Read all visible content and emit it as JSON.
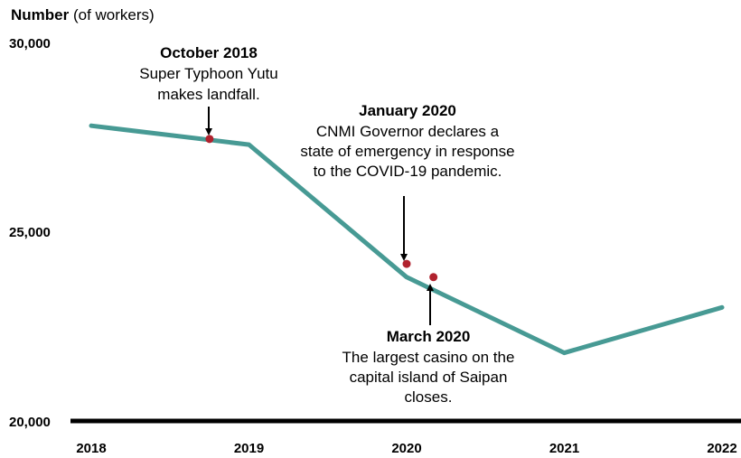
{
  "chart_data": {
    "type": "line",
    "title": "",
    "ylabel_bold": "Number",
    "ylabel_rest": " (of workers)",
    "xlabel": "",
    "ylim": [
      20000,
      30000
    ],
    "xlim": [
      2018,
      2022
    ],
    "y_ticks": [
      "30,000",
      "25,000",
      "20,000"
    ],
    "x_ticks": [
      "2018",
      "2019",
      "2020",
      "2021",
      "2022"
    ],
    "series": [
      {
        "color": "#479A94",
        "x": [
          2018,
          2019,
          2020,
          2021,
          2022
        ],
        "values": [
          27800,
          27300,
          23800,
          21800,
          23000
        ]
      }
    ],
    "events": [
      {
        "x": 2018.75,
        "y": 27450,
        "color": "#B0222E"
      },
      {
        "x": 2020.0,
        "y": 24150,
        "color": "#B0222E"
      },
      {
        "x": 2020.17,
        "y": 23800,
        "color": "#B0222E"
      }
    ],
    "annotations": [
      {
        "title": "October 2018",
        "lines": [
          "Super Typhoon Yutu",
          "makes landfall."
        ]
      },
      {
        "title": "January 2020",
        "lines": [
          "CNMI Governor declares a",
          "state of emergency in response",
          "to the COVID-19 pandemic."
        ]
      },
      {
        "title": "March 2020",
        "lines": [
          "The largest casino on the",
          "capital island of Saipan",
          "closes."
        ]
      }
    ]
  }
}
